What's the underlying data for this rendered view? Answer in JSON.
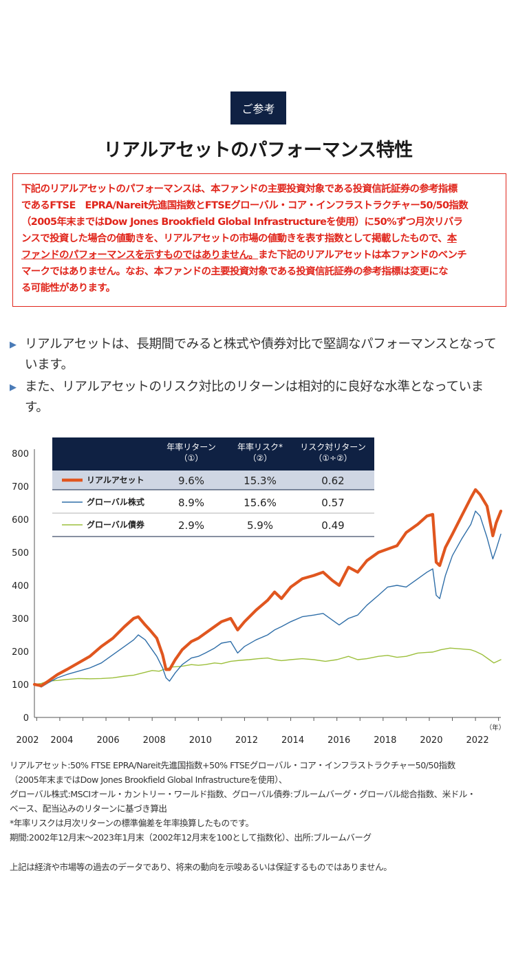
{
  "header": {
    "badge": "ご参考",
    "title": "リアルアセットのパフォーマンス特性"
  },
  "notice": {
    "line1": "下記のリアルアセットのパフォーマンスは、本ファンドの主要投資対象である投資信託証券の参考指標",
    "line2": "であるFTSE　EPRA/Nareit先進国指数とFTSEグローバル・コア・インフラストラクチャー50/50指数",
    "line3": "（2005年末まではDow Jones Brookfield Global Infrastructureを使用）に50%ずつ月次リバラ",
    "line4a": "ンスで投資した場合の値動きを、リアルアセットの市場の値動きを表す指数として掲載したもので、",
    "line4b": "本",
    "line5a": "ファンドのパフォーマンスを示すものではありません。",
    "line5b": "また下記のリアルアセットは本ファンドのベンチ",
    "line6": "マークではありません。なお、本ファンドの主要投資対象である投資信託証券の参考指標は変更にな",
    "line7": "る可能性があります。"
  },
  "bullets": [
    "リアルアセットは、長期間でみると株式や債券対比で堅調なパフォーマンスとなっています。",
    "また、リアルアセットのリスク対比のリターンは相対的に良好な水準となっています。"
  ],
  "table": {
    "headers": [
      {
        "l1": "年率リターン",
        "l2": "（①）"
      },
      {
        "l1": "年率リスク*",
        "l2": "（②）"
      },
      {
        "l1": "リスク対リターン",
        "l2": "（①÷②）"
      }
    ],
    "rows": [
      {
        "name": "リアルアセット",
        "ret": "9.6%",
        "risk": "15.3%",
        "ratio": "0.62"
      },
      {
        "name": "グローバル株式",
        "ret": "8.9%",
        "risk": "15.6%",
        "ratio": "0.57"
      },
      {
        "name": "グローバル債券",
        "ret": "2.9%",
        "risk": "5.9%",
        "ratio": "0.49"
      }
    ]
  },
  "colors": {
    "real_asset": "#e0561f",
    "global_equity": "#2f6ea8",
    "global_bond": "#9cbf3b",
    "navy": "#0f2143",
    "highlight_row": "#cfd6e3"
  },
  "chart_data": {
    "type": "line",
    "title": "",
    "xlabel": "（年）",
    "ylabel": "",
    "xlim": [
      2002.9,
      2023.1
    ],
    "ylim": [
      0,
      800
    ],
    "yticks": [
      0,
      100,
      200,
      300,
      400,
      500,
      600,
      700,
      800
    ],
    "xticks": [
      2002,
      2004,
      2006,
      2008,
      2010,
      2012,
      2014,
      2016,
      2018,
      2020,
      2022
    ],
    "series": [
      {
        "name": "リアルアセット",
        "points": [
          [
            2002.9,
            100
          ],
          [
            2003.2,
            96
          ],
          [
            2003.5,
            110
          ],
          [
            2003.9,
            130
          ],
          [
            2004.3,
            145
          ],
          [
            2004.8,
            165
          ],
          [
            2005.3,
            185
          ],
          [
            2005.8,
            215
          ],
          [
            2006.3,
            240
          ],
          [
            2006.8,
            275
          ],
          [
            2007.2,
            300
          ],
          [
            2007.4,
            305
          ],
          [
            2007.7,
            280
          ],
          [
            2007.9,
            265
          ],
          [
            2008.2,
            240
          ],
          [
            2008.45,
            190
          ],
          [
            2008.6,
            145
          ],
          [
            2008.75,
            145
          ],
          [
            2009.0,
            175
          ],
          [
            2009.3,
            205
          ],
          [
            2009.7,
            230
          ],
          [
            2010.0,
            240
          ],
          [
            2010.3,
            255
          ],
          [
            2010.7,
            275
          ],
          [
            2011.0,
            290
          ],
          [
            2011.4,
            300
          ],
          [
            2011.7,
            265
          ],
          [
            2012.0,
            290
          ],
          [
            2012.5,
            325
          ],
          [
            2013.0,
            355
          ],
          [
            2013.3,
            380
          ],
          [
            2013.6,
            360
          ],
          [
            2014.0,
            395
          ],
          [
            2014.5,
            420
          ],
          [
            2015.0,
            430
          ],
          [
            2015.4,
            440
          ],
          [
            2015.8,
            415
          ],
          [
            2016.1,
            400
          ],
          [
            2016.5,
            455
          ],
          [
            2016.9,
            440
          ],
          [
            2017.3,
            475
          ],
          [
            2017.8,
            500
          ],
          [
            2018.2,
            510
          ],
          [
            2018.6,
            520
          ],
          [
            2019.0,
            560
          ],
          [
            2019.5,
            585
          ],
          [
            2019.9,
            610
          ],
          [
            2020.15,
            615
          ],
          [
            2020.3,
            470
          ],
          [
            2020.45,
            460
          ],
          [
            2020.7,
            515
          ],
          [
            2021.0,
            555
          ],
          [
            2021.4,
            610
          ],
          [
            2021.8,
            665
          ],
          [
            2022.0,
            690
          ],
          [
            2022.2,
            675
          ],
          [
            2022.5,
            640
          ],
          [
            2022.75,
            550
          ],
          [
            2022.9,
            590
          ],
          [
            2023.1,
            625
          ]
        ]
      },
      {
        "name": "グローバル株式",
        "points": [
          [
            2002.9,
            100
          ],
          [
            2003.2,
            92
          ],
          [
            2003.5,
            105
          ],
          [
            2003.9,
            120
          ],
          [
            2004.3,
            130
          ],
          [
            2004.8,
            140
          ],
          [
            2005.3,
            150
          ],
          [
            2005.8,
            165
          ],
          [
            2006.3,
            190
          ],
          [
            2006.8,
            215
          ],
          [
            2007.2,
            235
          ],
          [
            2007.4,
            250
          ],
          [
            2007.7,
            235
          ],
          [
            2007.9,
            215
          ],
          [
            2008.2,
            185
          ],
          [
            2008.45,
            150
          ],
          [
            2008.6,
            120
          ],
          [
            2008.75,
            110
          ],
          [
            2009.0,
            135
          ],
          [
            2009.3,
            160
          ],
          [
            2009.7,
            180
          ],
          [
            2010.0,
            185
          ],
          [
            2010.3,
            195
          ],
          [
            2010.7,
            210
          ],
          [
            2011.0,
            225
          ],
          [
            2011.4,
            230
          ],
          [
            2011.7,
            195
          ],
          [
            2012.0,
            215
          ],
          [
            2012.5,
            235
          ],
          [
            2013.0,
            250
          ],
          [
            2013.3,
            265
          ],
          [
            2013.6,
            275
          ],
          [
            2014.0,
            290
          ],
          [
            2014.5,
            305
          ],
          [
            2015.0,
            310
          ],
          [
            2015.4,
            315
          ],
          [
            2015.8,
            295
          ],
          [
            2016.1,
            280
          ],
          [
            2016.5,
            300
          ],
          [
            2016.9,
            310
          ],
          [
            2017.3,
            340
          ],
          [
            2017.8,
            370
          ],
          [
            2018.2,
            395
          ],
          [
            2018.6,
            400
          ],
          [
            2019.0,
            395
          ],
          [
            2019.5,
            420
          ],
          [
            2019.9,
            440
          ],
          [
            2020.15,
            450
          ],
          [
            2020.3,
            370
          ],
          [
            2020.45,
            360
          ],
          [
            2020.7,
            430
          ],
          [
            2021.0,
            490
          ],
          [
            2021.4,
            540
          ],
          [
            2021.8,
            585
          ],
          [
            2022.0,
            625
          ],
          [
            2022.2,
            610
          ],
          [
            2022.5,
            545
          ],
          [
            2022.75,
            480
          ],
          [
            2022.9,
            510
          ],
          [
            2023.1,
            555
          ]
        ]
      },
      {
        "name": "グローバル債券",
        "points": [
          [
            2002.9,
            100
          ],
          [
            2003.2,
            103
          ],
          [
            2003.5,
            110
          ],
          [
            2003.9,
            112
          ],
          [
            2004.3,
            115
          ],
          [
            2004.8,
            118
          ],
          [
            2005.3,
            117
          ],
          [
            2005.8,
            118
          ],
          [
            2006.3,
            120
          ],
          [
            2006.8,
            125
          ],
          [
            2007.2,
            128
          ],
          [
            2007.6,
            135
          ],
          [
            2008.0,
            142
          ],
          [
            2008.3,
            140
          ],
          [
            2008.6,
            148
          ],
          [
            2008.9,
            153
          ],
          [
            2009.3,
            155
          ],
          [
            2009.7,
            160
          ],
          [
            2010.0,
            158
          ],
          [
            2010.3,
            160
          ],
          [
            2010.7,
            165
          ],
          [
            2011.0,
            163
          ],
          [
            2011.4,
            170
          ],
          [
            2011.8,
            173
          ],
          [
            2012.2,
            175
          ],
          [
            2012.6,
            178
          ],
          [
            2013.0,
            180
          ],
          [
            2013.3,
            175
          ],
          [
            2013.6,
            172
          ],
          [
            2014.0,
            175
          ],
          [
            2014.5,
            178
          ],
          [
            2015.0,
            175
          ],
          [
            2015.5,
            170
          ],
          [
            2016.0,
            175
          ],
          [
            2016.5,
            185
          ],
          [
            2016.9,
            175
          ],
          [
            2017.3,
            178
          ],
          [
            2017.8,
            185
          ],
          [
            2018.2,
            188
          ],
          [
            2018.6,
            182
          ],
          [
            2019.0,
            185
          ],
          [
            2019.5,
            195
          ],
          [
            2019.9,
            197
          ],
          [
            2020.15,
            198
          ],
          [
            2020.5,
            205
          ],
          [
            2020.9,
            210
          ],
          [
            2021.3,
            208
          ],
          [
            2021.8,
            205
          ],
          [
            2022.0,
            200
          ],
          [
            2022.3,
            190
          ],
          [
            2022.6,
            175
          ],
          [
            2022.8,
            165
          ],
          [
            2023.1,
            175
          ]
        ]
      }
    ]
  },
  "footnotes": {
    "l1": "リアルアセット:50% FTSE EPRA/Nareit先進国指数+50% FTSEグローバル・コア・インフラストラクチャー50/50指数",
    "l2": "（2005年末まではDow Jones Brookfield Global Infrastructureを使用）、",
    "l3": "グローバル株式:MSCIオール・カントリー・ワールド指数、グローバル債券:ブルームバーグ・グローバル総合指数、米ドル・",
    "l4": "ベース、配当込みのリターンに基づき算出",
    "l5": "*年率リスクは月次リターンの標準偏差を年率換算したものです。",
    "l6": "期間:2002年12月末～2023年1月末（2002年12月末を100として指数化）、出所:ブルームバーグ",
    "disclaimer": "上記は経済や市場等の過去のデータであり、将来の動向を示唆あるいは保証するものではありません。"
  }
}
